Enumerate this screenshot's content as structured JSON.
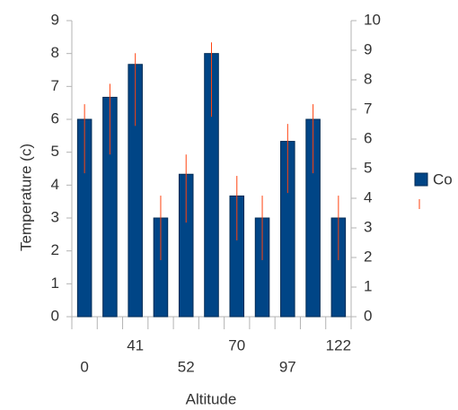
{
  "chart_data": {
    "type": "bar",
    "y_label": "Temperature (c)",
    "x_label": "Altitude",
    "categories": [
      "0",
      null,
      "41",
      null,
      "52",
      null,
      "70",
      null,
      "97",
      null,
      "122"
    ],
    "series": [
      {
        "name": "Co",
        "color": "#004586",
        "values": [
          6,
          6.67,
          7.67,
          3,
          4.33,
          8,
          3.67,
          3,
          5.33,
          6,
          3
        ],
        "error_low": [
          4.36,
          4.93,
          5.8,
          1.72,
          2.86,
          6.08,
          2.32,
          1.72,
          3.76,
          4.36,
          1.72
        ],
        "error_high": [
          6.46,
          7.08,
          8.01,
          3.68,
          4.93,
          8.34,
          4.28,
          3.68,
          5.86,
          6.46,
          3.68
        ],
        "error_color": "#ff420e"
      }
    ],
    "ylim": [
      0,
      9
    ],
    "yticks": [
      0,
      1,
      2,
      3,
      4,
      5,
      6,
      7,
      8,
      9
    ],
    "y2lim": [
      0,
      10
    ],
    "y2ticks": [
      0,
      1,
      2,
      3,
      4,
      5,
      6,
      7,
      8,
      9,
      10
    ],
    "legend": "right"
  }
}
